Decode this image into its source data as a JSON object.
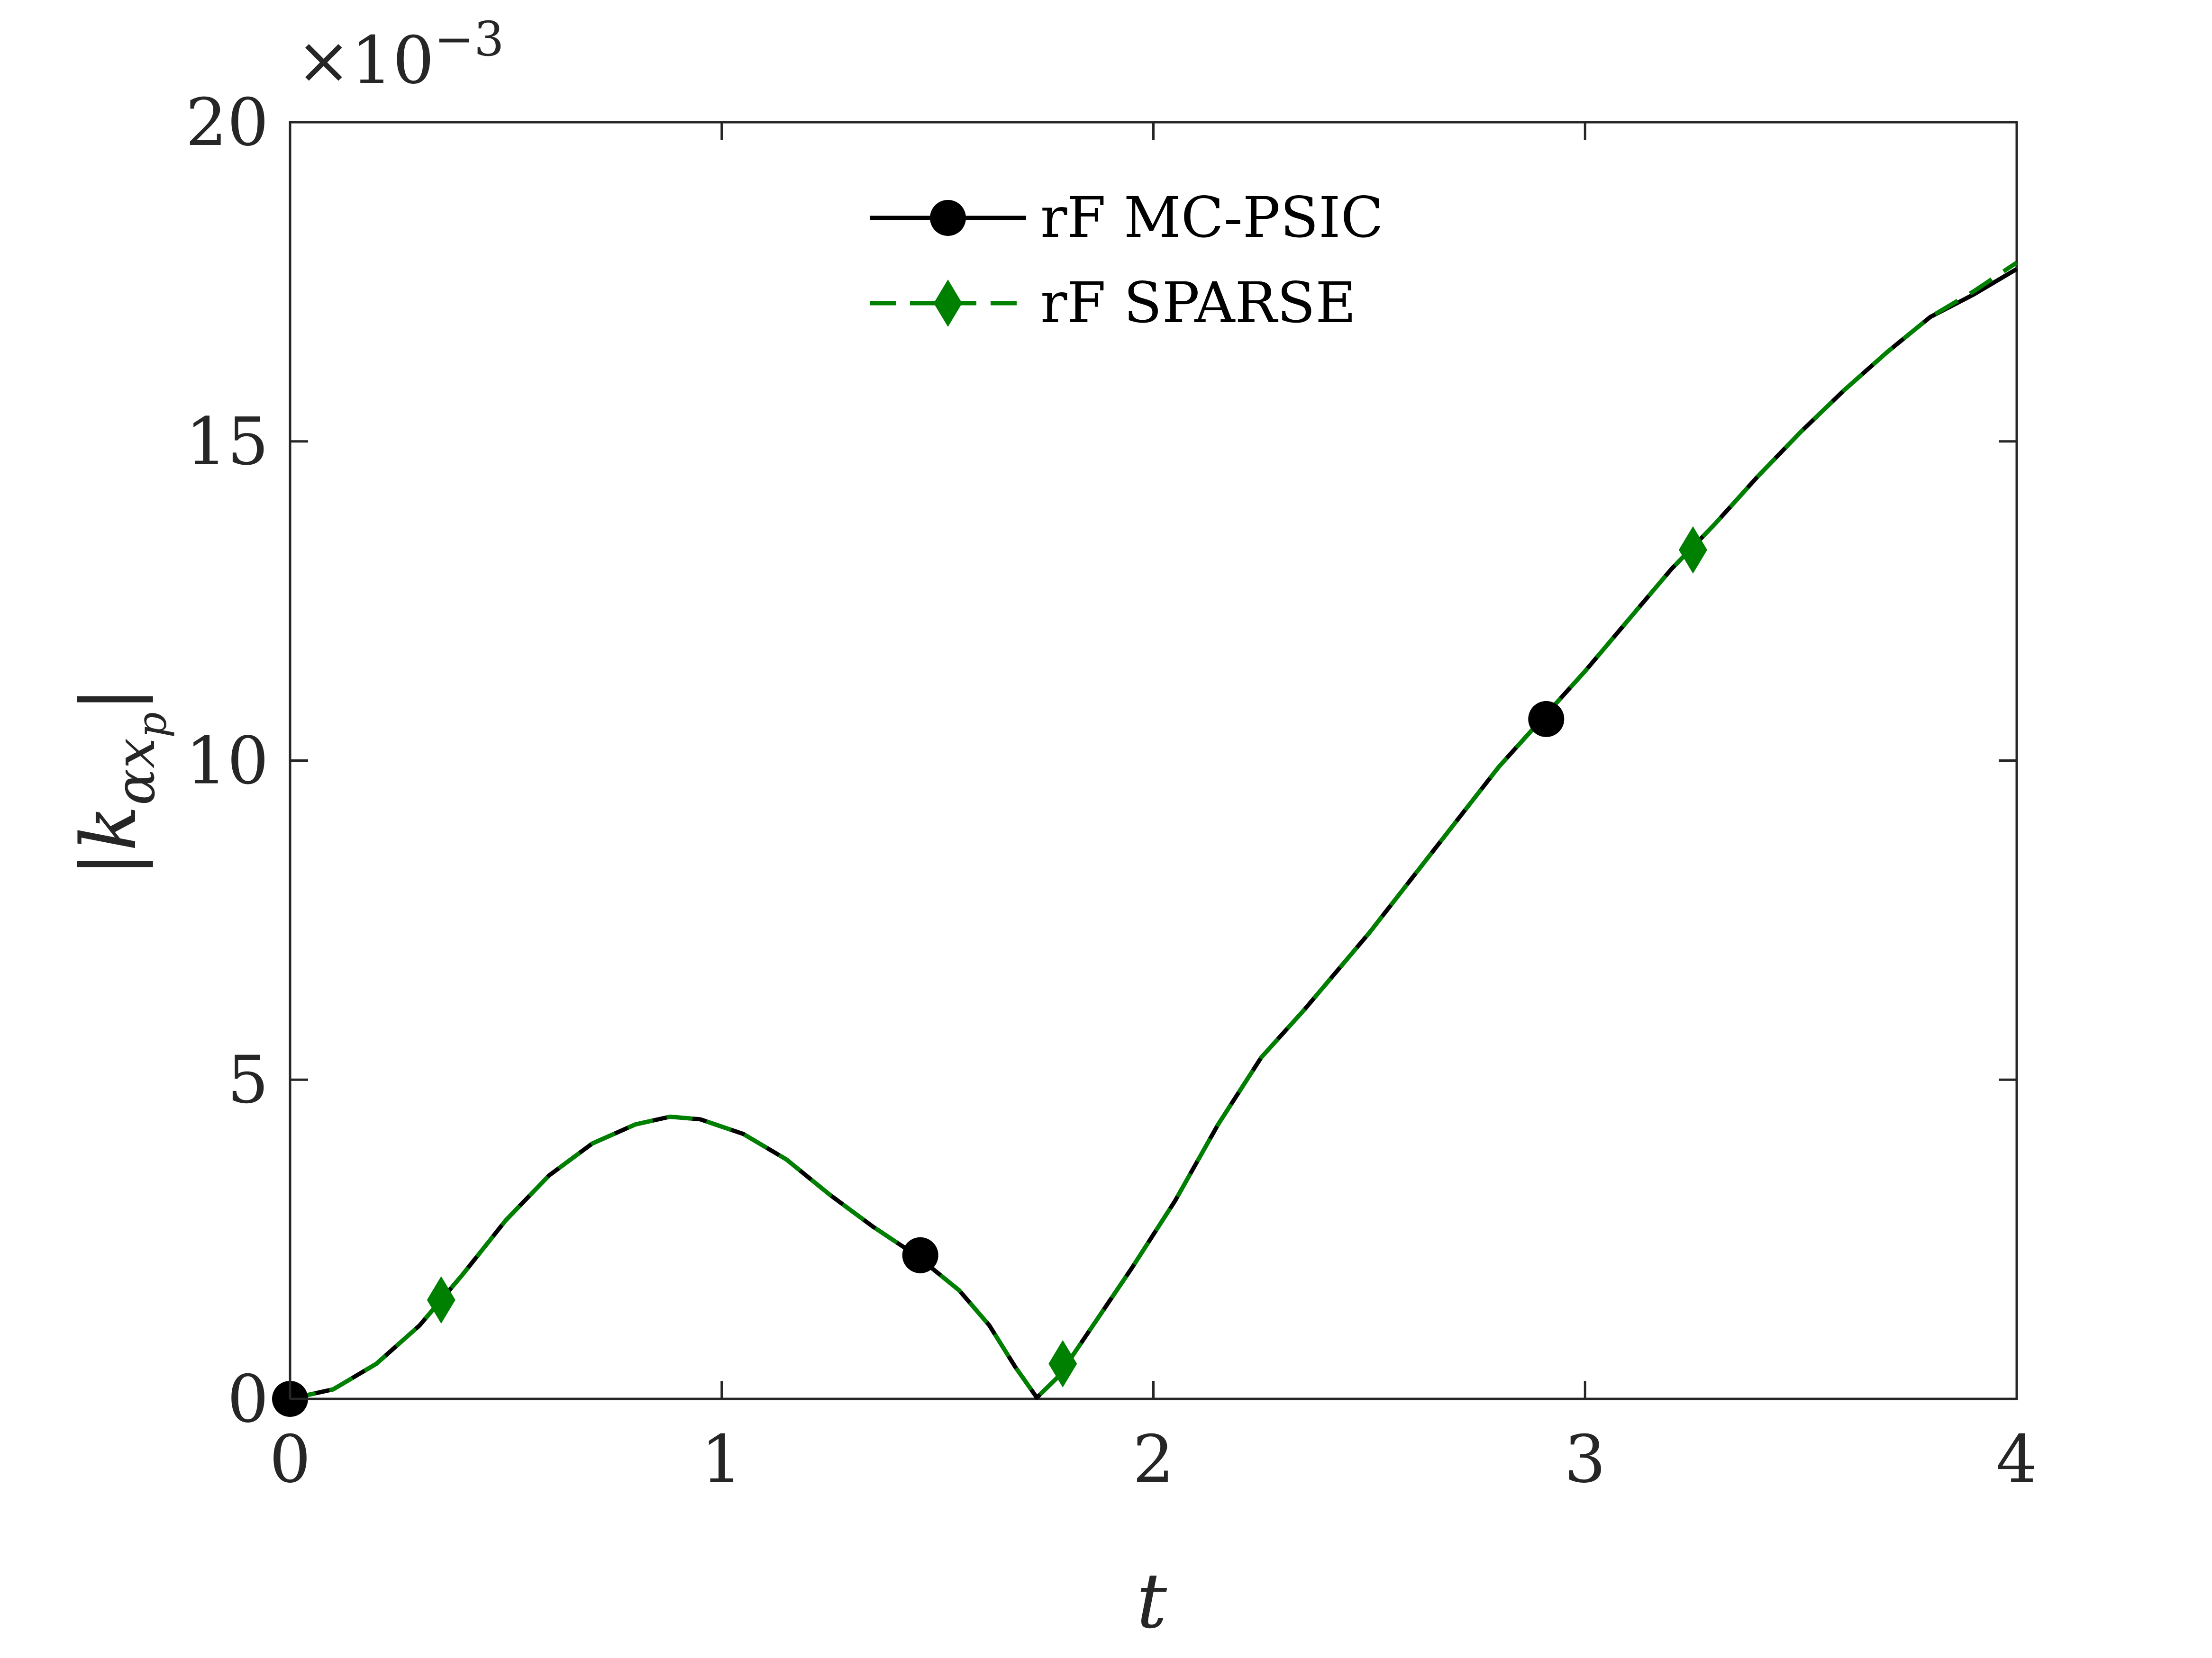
{
  "chart_data": {
    "type": "line",
    "title": "",
    "xlabel": "t",
    "ylabel": "|k",
    "ylabel_subscript": "αx",
    "ylabel_subsubscript": "p",
    "ylabel_close": "|",
    "y_exponent_label": "×10",
    "y_exponent_power": "−3",
    "xlim": [
      0,
      4
    ],
    "ylim": [
      0,
      20
    ],
    "x_ticks": [
      0,
      1,
      2,
      3,
      4
    ],
    "x_tick_labels": [
      "0",
      "1",
      "2",
      "3",
      "4"
    ],
    "y_ticks": [
      0,
      5,
      10,
      15,
      20
    ],
    "y_tick_labels": [
      "0",
      "5",
      "10",
      "15",
      "20"
    ],
    "grid": false,
    "legend_position": "top-center",
    "series": [
      {
        "name": "rF MC-PSIC",
        "color": "#000000",
        "line_style": "solid",
        "marker": "circle",
        "x": [
          0,
          0.1,
          0.2,
          0.3,
          0.4,
          0.5,
          0.6,
          0.7,
          0.8,
          0.88,
          0.95,
          1.05,
          1.15,
          1.25,
          1.35,
          1.45,
          1.55,
          1.62,
          1.68,
          1.73,
          1.78,
          1.85,
          1.95,
          2.05,
          2.15,
          2.25,
          2.35,
          2.5,
          2.65,
          2.8,
          2.9,
          3.0,
          3.1,
          3.2,
          3.3,
          3.4,
          3.5,
          3.6,
          3.7,
          3.8,
          3.9,
          4.0
        ],
        "y": [
          0,
          0.15,
          0.55,
          1.15,
          1.95,
          2.8,
          3.5,
          4.0,
          4.3,
          4.42,
          4.38,
          4.15,
          3.75,
          3.2,
          2.7,
          2.25,
          1.7,
          1.15,
          0.5,
          0.02,
          0.35,
          1.05,
          2.05,
          3.1,
          4.3,
          5.35,
          6.1,
          7.3,
          8.6,
          9.9,
          10.65,
          11.4,
          12.2,
          13.0,
          13.7,
          14.45,
          15.15,
          15.8,
          16.4,
          16.95,
          17.3,
          17.7
        ],
        "marker_points": [
          [
            0,
            0
          ],
          [
            1.46,
            2.25
          ],
          [
            2.91,
            10.65
          ]
        ]
      },
      {
        "name": "rF SPARSE",
        "color": "#008000",
        "line_style": "dashed",
        "marker": "diamond",
        "x": [
          0,
          0.1,
          0.2,
          0.3,
          0.4,
          0.5,
          0.6,
          0.7,
          0.8,
          0.88,
          0.95,
          1.05,
          1.15,
          1.25,
          1.35,
          1.45,
          1.55,
          1.62,
          1.68,
          1.73,
          1.78,
          1.85,
          1.95,
          2.05,
          2.15,
          2.25,
          2.35,
          2.5,
          2.65,
          2.8,
          2.9,
          3.0,
          3.1,
          3.2,
          3.3,
          3.4,
          3.5,
          3.6,
          3.7,
          3.8,
          3.9,
          4.0
        ],
        "y": [
          0,
          0.15,
          0.55,
          1.15,
          1.95,
          2.8,
          3.5,
          4.0,
          4.3,
          4.42,
          4.38,
          4.15,
          3.75,
          3.2,
          2.7,
          2.25,
          1.7,
          1.15,
          0.5,
          0.02,
          0.35,
          1.05,
          2.05,
          3.1,
          4.3,
          5.35,
          6.1,
          7.3,
          8.6,
          9.9,
          10.65,
          11.4,
          12.2,
          13.0,
          13.7,
          14.45,
          15.15,
          15.8,
          16.4,
          16.95,
          17.35,
          17.8
        ],
        "marker_points": [
          [
            0.35,
            1.55
          ],
          [
            1.79,
            0.55
          ],
          [
            3.25,
            13.3
          ]
        ]
      }
    ]
  }
}
